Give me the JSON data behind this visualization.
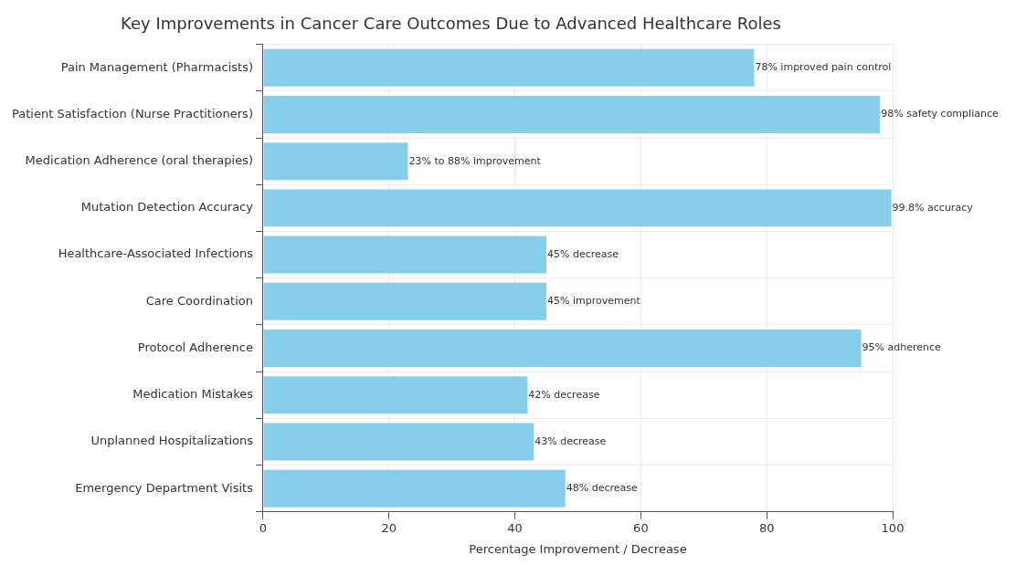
{
  "chart_data": {
    "type": "bar",
    "orientation": "horizontal",
    "title": "Key Improvements in Cancer Care Outcomes Due to Advanced Healthcare Roles",
    "xlabel": "Percentage Improvement / Decrease",
    "categories": [
      "Pain Management (Pharmacists)",
      "Patient Satisfaction (Nurse Practitioners)",
      "Medication Adherence (oral therapies)",
      "Mutation Detection Accuracy",
      "Healthcare-Associated Infections",
      "Care Coordination",
      "Protocol Adherence",
      "Medication Mistakes",
      "Unplanned Hospitalizations",
      "Emergency Department Visits"
    ],
    "values": [
      78,
      98,
      23,
      99.8,
      45,
      45,
      95,
      42,
      43,
      48
    ],
    "value_labels": [
      "78% improved pain control",
      "98% safety compliance",
      "23% to 88% improvement",
      "99.8% accuracy",
      "45% decrease",
      "45% improvement",
      "95% adherence",
      "42% decrease",
      "43% decrease",
      "48% decrease"
    ],
    "color": "#87ceeb",
    "xlim": [
      0,
      100
    ],
    "xticks": [
      0,
      20,
      40,
      60,
      80,
      100
    ],
    "grid": true
  }
}
